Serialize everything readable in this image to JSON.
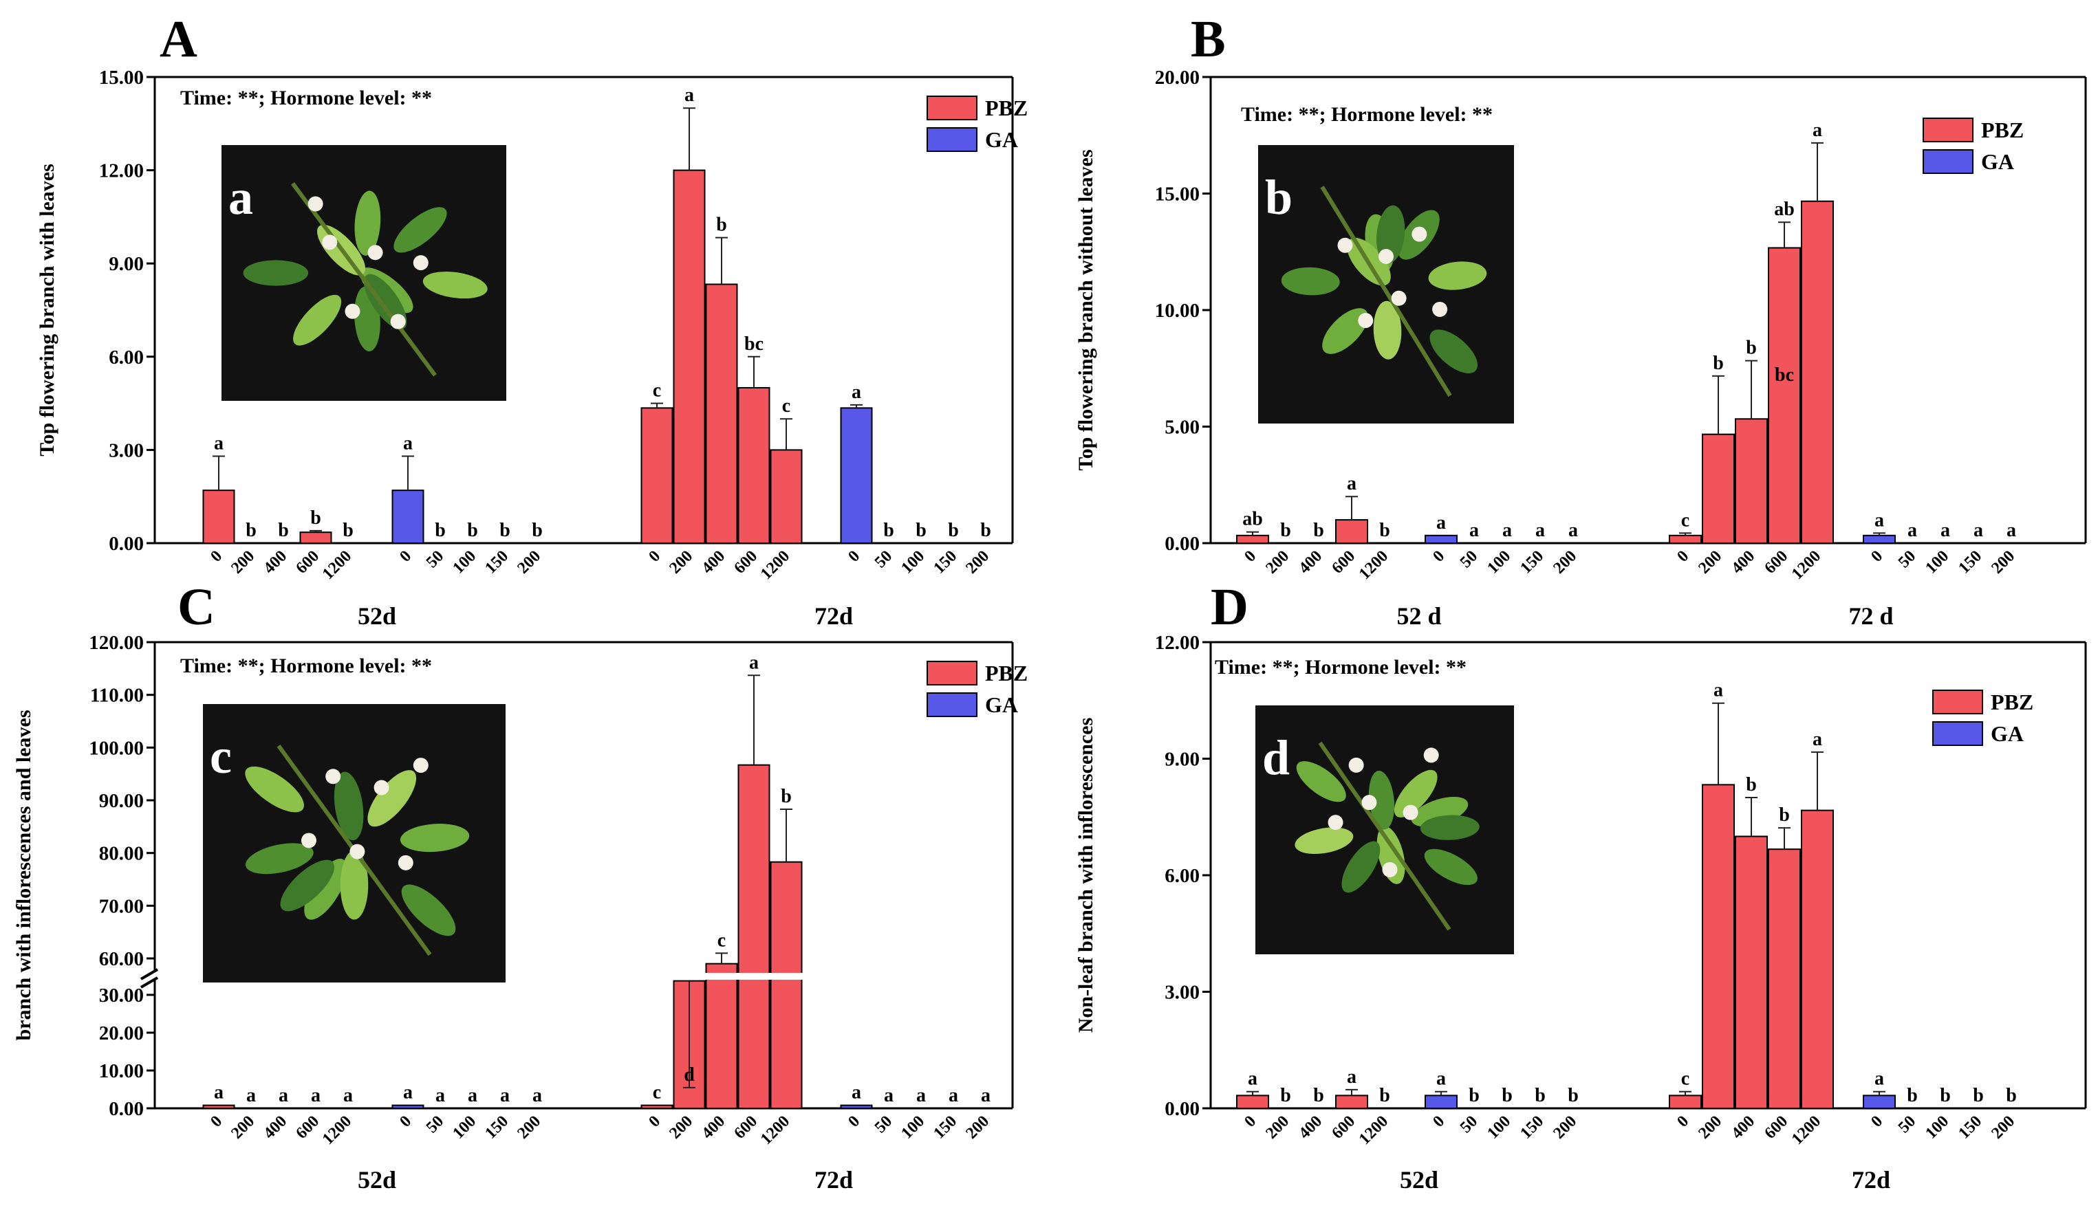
{
  "colors": {
    "pbz": "#f2545b",
    "ga": "#5858e8",
    "axis": "#000000",
    "photo_bg": "#121212"
  },
  "chart_data": [
    {
      "id": "A",
      "type": "bar",
      "panel_label": "A",
      "ylabel": "Top flowering branch with leaves",
      "stats": "Time: **;  Hormone level: **",
      "ylim": [
        0,
        15
      ],
      "yticks": [
        "0.00",
        "3.00",
        "6.00",
        "9.00",
        "12.00",
        "15.00"
      ],
      "time_labels": [
        "52d",
        "72d"
      ],
      "legend": [
        "PBZ",
        "GA"
      ],
      "photo_label": "a",
      "groups": [
        {
          "series": "PBZ",
          "time": "52d",
          "categories": [
            "0",
            "200",
            "400",
            "600",
            "1200"
          ],
          "values": [
            1.7,
            0,
            0,
            0.35,
            0
          ],
          "errors": [
            1.1,
            0,
            0,
            0.05,
            0
          ],
          "letters": [
            "a",
            "b",
            "b",
            "b",
            "b"
          ]
        },
        {
          "series": "GA",
          "time": "52d",
          "categories": [
            "0",
            "50",
            "100",
            "150",
            "200"
          ],
          "values": [
            1.7,
            0,
            0,
            0,
            0
          ],
          "errors": [
            1.1,
            0,
            0,
            0,
            0
          ],
          "letters": [
            "a",
            "b",
            "b",
            "b",
            "b"
          ]
        },
        {
          "series": "PBZ",
          "time": "72d",
          "categories": [
            "0",
            "200",
            "400",
            "600",
            "1200"
          ],
          "values": [
            4.35,
            12.0,
            8.33,
            5.0,
            3.0
          ],
          "errors": [
            0.15,
            2.0,
            1.5,
            1.0,
            1.0
          ],
          "letters": [
            "c",
            "a",
            "b",
            "bc",
            "c"
          ]
        },
        {
          "series": "GA",
          "time": "72d",
          "categories": [
            "0",
            "50",
            "100",
            "150",
            "200"
          ],
          "values": [
            4.35,
            0,
            0,
            0,
            0
          ],
          "errors": [
            0.1,
            0,
            0,
            0,
            0
          ],
          "letters": [
            "a",
            "b",
            "b",
            "b",
            "b"
          ]
        }
      ]
    },
    {
      "id": "B",
      "type": "bar",
      "panel_label": "B",
      "ylabel": "Top flowering branch without leaves",
      "stats": "Time: **;  Hormone level: **",
      "ylim": [
        0,
        20
      ],
      "yticks": [
        "0.00",
        "5.00",
        "10.00",
        "15.00",
        "20.00"
      ],
      "time_labels": [
        "52 d",
        "72 d"
      ],
      "legend": [
        "PBZ",
        "GA"
      ],
      "photo_label": "b",
      "groups": [
        {
          "series": "PBZ",
          "time": "52 d",
          "categories": [
            "0",
            "200",
            "400",
            "600",
            "1200"
          ],
          "values": [
            0.33,
            0,
            0,
            1.0,
            0
          ],
          "errors": [
            0.15,
            0,
            0,
            1.0,
            0
          ],
          "letters": [
            "ab",
            "b",
            "b",
            "a",
            "b"
          ]
        },
        {
          "series": "GA",
          "time": "52 d",
          "categories": [
            "0",
            "50",
            "100",
            "150",
            "200"
          ],
          "values": [
            0.33,
            0,
            0,
            0,
            0
          ],
          "errors": [
            0,
            0,
            0,
            0,
            0
          ],
          "letters": [
            "a",
            "a",
            "a",
            "a",
            "a"
          ]
        },
        {
          "series": "PBZ",
          "time": "72 d",
          "categories": [
            "0",
            "200",
            "400",
            "600",
            "1200"
          ],
          "values": [
            0.33,
            4.67,
            5.33,
            12.67,
            14.67
          ],
          "errors": [
            0.1,
            2.5,
            2.5,
            1.1,
            2.5
          ],
          "letters": [
            "c",
            "b",
            "b",
            "ab",
            "a"
          ],
          "inner_letters": {
            "3": "bc"
          }
        },
        {
          "series": "GA",
          "time": "72 d",
          "categories": [
            "0",
            "50",
            "100",
            "150",
            "200"
          ],
          "values": [
            0.33,
            0,
            0,
            0,
            0
          ],
          "errors": [
            0.1,
            0,
            0,
            0,
            0
          ],
          "letters": [
            "a",
            "a",
            "a",
            "a",
            "a"
          ]
        }
      ]
    },
    {
      "id": "C",
      "type": "bar",
      "panel_label": "C",
      "ylabel": "branch with inflorescences and leaves",
      "stats": "Time: **;  Hormone level: **",
      "ylim": [
        0,
        120
      ],
      "axis_break": [
        35,
        55
      ],
      "yticks_lower": [
        "0.00",
        "10.00",
        "20.00",
        "30.00"
      ],
      "yticks_upper": [
        "60.00",
        "70.00",
        "80.00",
        "90.00",
        "100.00",
        "110.00",
        "120.00"
      ],
      "time_labels": [
        "52d",
        "72d"
      ],
      "legend": [
        "PBZ",
        "GA"
      ],
      "photo_label": "c",
      "groups": [
        {
          "series": "PBZ",
          "time": "52d",
          "categories": [
            "0",
            "200",
            "400",
            "600",
            "1200"
          ],
          "values": [
            0.8,
            0,
            0,
            0,
            0
          ],
          "errors": [
            0,
            0,
            0,
            0,
            0
          ],
          "letters": [
            "a",
            "a",
            "a",
            "a",
            "a"
          ]
        },
        {
          "series": "GA",
          "time": "52d",
          "categories": [
            "0",
            "50",
            "100",
            "150",
            "200"
          ],
          "values": [
            0.8,
            0,
            0,
            0,
            0
          ],
          "errors": [
            0,
            0,
            0,
            0,
            0
          ],
          "letters": [
            "a",
            "a",
            "a",
            "a",
            "a"
          ]
        },
        {
          "series": "PBZ",
          "time": "72d",
          "categories": [
            "0",
            "200",
            "400",
            "600",
            "1200"
          ],
          "values": [
            0.8,
            33.7,
            59.0,
            96.7,
            78.3
          ],
          "errors": [
            0,
            1.8,
            2.0,
            17.0,
            10.0
          ],
          "letters": [
            "c",
            "d",
            "c",
            "a",
            "b"
          ]
        },
        {
          "series": "GA",
          "time": "72d",
          "categories": [
            "0",
            "50",
            "100",
            "150",
            "200"
          ],
          "values": [
            0.8,
            0,
            0,
            0,
            0
          ],
          "errors": [
            0,
            0,
            0,
            0,
            0
          ],
          "letters": [
            "a",
            "a",
            "a",
            "a",
            "a"
          ]
        }
      ]
    },
    {
      "id": "D",
      "type": "bar",
      "panel_label": "D",
      "ylabel": "Non-leaf  branch with inflorescences",
      "stats": "Time: **;  Hormone level: **",
      "ylim": [
        0,
        12
      ],
      "yticks": [
        "0.00",
        "3.00",
        "6.00",
        "9.00",
        "12.00"
      ],
      "time_labels": [
        "52d",
        "72d"
      ],
      "legend": [
        "PBZ",
        "GA"
      ],
      "photo_label": "d",
      "groups": [
        {
          "series": "PBZ",
          "time": "52d",
          "categories": [
            "0",
            "200",
            "400",
            "600",
            "1200"
          ],
          "values": [
            0.33,
            0,
            0,
            0.33,
            0
          ],
          "errors": [
            0.1,
            0,
            0,
            0.15,
            0
          ],
          "letters": [
            "a",
            "b",
            "b",
            "a",
            "b"
          ]
        },
        {
          "series": "GA",
          "time": "52d",
          "categories": [
            "0",
            "50",
            "100",
            "150",
            "200"
          ],
          "values": [
            0.33,
            0,
            0,
            0,
            0
          ],
          "errors": [
            0.1,
            0,
            0,
            0,
            0
          ],
          "letters": [
            "a",
            "b",
            "b",
            "b",
            "b"
          ]
        },
        {
          "series": "PBZ",
          "time": "72d",
          "categories": [
            "0",
            "200",
            "400",
            "600",
            "1200"
          ],
          "values": [
            0.33,
            8.33,
            7.0,
            6.67,
            7.67
          ],
          "errors": [
            0.1,
            2.1,
            1.0,
            0.55,
            1.5
          ],
          "letters": [
            "c",
            "a",
            "b",
            "b",
            "a"
          ]
        },
        {
          "series": "GA",
          "time": "72d",
          "categories": [
            "0",
            "50",
            "100",
            "150",
            "200"
          ],
          "values": [
            0.33,
            0,
            0,
            0,
            0
          ],
          "errors": [
            0.1,
            0,
            0,
            0,
            0
          ],
          "letters": [
            "a",
            "b",
            "b",
            "b",
            "b"
          ]
        }
      ]
    }
  ]
}
